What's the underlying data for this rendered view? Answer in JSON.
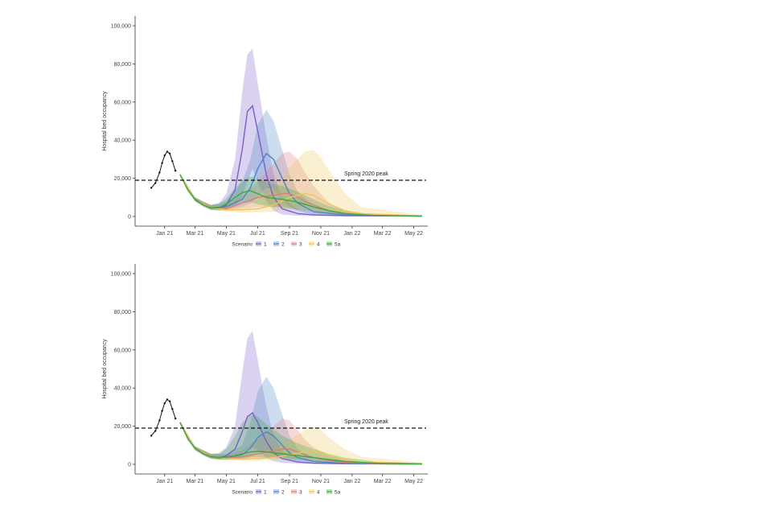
{
  "chart_data": [
    {
      "type": "area",
      "ylabel": "Hospital bed occupancy",
      "ylim": [
        0,
        100000
      ],
      "y_ticks": [
        "0",
        "20,000",
        "40,000",
        "60,000",
        "80,000",
        "100,000"
      ],
      "x_ticks": [
        "Jan 21",
        "Mar 21",
        "May 21",
        "Jul 21",
        "Sep 21",
        "Nov 21",
        "Jan 22",
        "Mar 22",
        "May 22"
      ],
      "reference_line": {
        "label": "Spring 2020 peak",
        "y": 19000
      },
      "legend": {
        "title": "Scenario",
        "placement": "bottom",
        "labels": [
          "1",
          "2",
          "3",
          "4",
          "5a"
        ]
      },
      "observed": {
        "x": [
          "2020-12-20",
          "2020-12-28",
          "2021-01-05",
          "2021-01-10",
          "2021-01-15",
          "2021-01-20",
          "2021-01-25",
          "2021-01-30",
          "2021-02-05"
        ],
        "y": [
          15000,
          17500,
          23000,
          28000,
          32000,
          34000,
          33000,
          29000,
          24000
        ]
      },
      "series": [
        {
          "color": "#7b5fc9",
          "x": [
            "2021-02-14",
            "2021-03-01",
            "2021-03-15",
            "2021-04-01",
            "2021-04-15",
            "2021-05-01",
            "2021-05-15",
            "2021-06-01",
            "2021-06-15",
            "2021-06-25",
            "2021-07-05",
            "2021-07-15",
            "2021-08-01",
            "2021-08-15",
            "2021-09-01",
            "2021-10-01",
            "2021-11-01",
            "2022-01-01",
            "2022-05-31"
          ],
          "y": [
            22000,
            15000,
            9000,
            6000,
            4500,
            4200,
            6000,
            14000,
            35000,
            55000,
            58000,
            45000,
            22000,
            10000,
            4000,
            1500,
            800,
            400,
            200
          ],
          "lo": [
            22000,
            14000,
            8000,
            5000,
            3500,
            3000,
            4000,
            6000,
            10000,
            18000,
            25000,
            18000,
            8000,
            3000,
            1000,
            400,
            200,
            100,
            50
          ],
          "hi": [
            22000,
            16000,
            10000,
            7500,
            6000,
            7000,
            12000,
            30000,
            65000,
            85000,
            88000,
            70000,
            42000,
            22000,
            10000,
            4000,
            2000,
            1000,
            500
          ]
        },
        {
          "color": "#4a86c8",
          "x": [
            "2021-02-14",
            "2021-03-15",
            "2021-04-15",
            "2021-05-15",
            "2021-06-15",
            "2021-07-01",
            "2021-07-15",
            "2021-08-01",
            "2021-08-15",
            "2021-09-01",
            "2021-09-15",
            "2021-10-01",
            "2021-11-01",
            "2022-01-01",
            "2022-05-31"
          ],
          "y": [
            22000,
            9000,
            4500,
            5000,
            9000,
            15000,
            25000,
            33000,
            30000,
            20000,
            12000,
            7000,
            2500,
            800,
            200
          ],
          "lo": [
            22000,
            8000,
            3500,
            3500,
            5000,
            7000,
            10000,
            15000,
            14000,
            9000,
            5000,
            3000,
            1000,
            300,
            50
          ],
          "hi": [
            22000,
            10000,
            6000,
            8000,
            18000,
            30000,
            48000,
            56000,
            50000,
            35000,
            22000,
            13000,
            5000,
            1500,
            500
          ]
        },
        {
          "color": "#e07b7b",
          "x": [
            "2021-02-14",
            "2021-03-15",
            "2021-04-15",
            "2021-05-15",
            "2021-06-15",
            "2021-07-15",
            "2021-08-15",
            "2021-09-01",
            "2021-09-15",
            "2021-10-01",
            "2021-10-15",
            "2021-11-01",
            "2021-12-01",
            "2022-01-01",
            "2022-03-01",
            "2022-05-31"
          ],
          "y": [
            22000,
            9000,
            4500,
            4000,
            7000,
            10000,
            11000,
            12000,
            12000,
            10000,
            8000,
            6000,
            3000,
            1500,
            500,
            200
          ],
          "lo": [
            22000,
            8000,
            3500,
            3000,
            4000,
            5000,
            5000,
            5500,
            5000,
            4000,
            3000,
            2000,
            1000,
            500,
            150,
            50
          ],
          "hi": [
            22000,
            10000,
            6000,
            6000,
            11000,
            18000,
            28000,
            33000,
            34000,
            30000,
            23000,
            16000,
            7000,
            3000,
            1000,
            400
          ]
        },
        {
          "color": "#f0c45a",
          "x": [
            "2021-02-14",
            "2021-03-15",
            "2021-04-15",
            "2021-05-15",
            "2021-06-15",
            "2021-07-15",
            "2021-08-15",
            "2021-09-15",
            "2021-10-15",
            "2021-11-01",
            "2021-11-15",
            "2021-12-01",
            "2022-01-01",
            "2022-02-01",
            "2022-05-31"
          ],
          "y": [
            22000,
            9000,
            4500,
            3500,
            3500,
            4000,
            6000,
            10000,
            12000,
            11000,
            9000,
            6500,
            3000,
            1500,
            300
          ],
          "lo": [
            22000,
            8000,
            3500,
            2500,
            2000,
            2000,
            2500,
            4000,
            5000,
            4500,
            3500,
            2500,
            1000,
            500,
            100
          ],
          "hi": [
            22000,
            10000,
            6000,
            5000,
            6000,
            9000,
            15000,
            26000,
            34000,
            35000,
            31000,
            24000,
            12000,
            5000,
            800
          ]
        },
        {
          "color": "#3aa83a",
          "x": [
            "2021-02-14",
            "2021-03-01",
            "2021-03-15",
            "2021-04-01",
            "2021-04-15",
            "2021-05-01",
            "2021-05-15",
            "2021-06-01",
            "2021-06-15",
            "2021-07-01",
            "2021-07-15",
            "2021-08-01",
            "2021-09-01",
            "2021-10-01",
            "2021-11-01",
            "2021-12-01",
            "2022-01-01",
            "2022-03-01",
            "2022-05-31"
          ],
          "y": [
            22000,
            14000,
            9000,
            6000,
            4500,
            4500,
            6500,
            10000,
            12500,
            13500,
            12000,
            10000,
            9000,
            7500,
            5000,
            3000,
            1500,
            500,
            200
          ],
          "lo": [
            22000,
            13000,
            8000,
            5000,
            3500,
            3500,
            4500,
            6000,
            7000,
            7500,
            6500,
            5500,
            4500,
            3500,
            2500,
            1500,
            700,
            200,
            50
          ],
          "hi": [
            22000,
            15000,
            10000,
            7500,
            6000,
            6500,
            9500,
            15000,
            19000,
            21000,
            20000,
            18000,
            16000,
            13000,
            9000,
            5500,
            3000,
            1000,
            400
          ]
        }
      ]
    },
    {
      "type": "area",
      "ylabel": "Hospital bed occupancy",
      "ylim": [
        0,
        100000
      ],
      "y_ticks": [
        "0",
        "20,000",
        "40,000",
        "60,000",
        "80,000",
        "100,000"
      ],
      "x_ticks": [
        "Jan 21",
        "Mar 21",
        "May 21",
        "Jul 21",
        "Sep 21",
        "Nov 21",
        "Jan 22",
        "Mar 22",
        "May 22"
      ],
      "reference_line": {
        "label": "Spring 2020 peak",
        "y": 19000
      },
      "legend": {
        "title": "Scenario",
        "placement": "bottom",
        "labels": [
          "1",
          "2",
          "3",
          "4",
          "5a"
        ]
      },
      "observed": {
        "x": [
          "2020-12-20",
          "2020-12-28",
          "2021-01-05",
          "2021-01-10",
          "2021-01-15",
          "2021-01-20",
          "2021-01-25",
          "2021-01-30",
          "2021-02-05"
        ],
        "y": [
          15000,
          17500,
          23000,
          28000,
          32000,
          34000,
          33000,
          29000,
          24000
        ]
      },
      "series": [
        {
          "color": "#7b5fc9",
          "x": [
            "2021-02-14",
            "2021-03-01",
            "2021-03-15",
            "2021-04-01",
            "2021-04-15",
            "2021-05-01",
            "2021-05-15",
            "2021-06-01",
            "2021-06-15",
            "2021-06-25",
            "2021-07-05",
            "2021-07-15",
            "2021-08-01",
            "2021-08-15",
            "2021-09-01",
            "2021-10-01",
            "2021-11-01",
            "2022-01-01",
            "2022-05-31"
          ],
          "y": [
            22000,
            14000,
            8500,
            5500,
            4000,
            3500,
            4500,
            8000,
            17000,
            25000,
            27000,
            22000,
            12000,
            6000,
            3000,
            1200,
            600,
            300,
            100
          ],
          "lo": [
            22000,
            13000,
            7500,
            4500,
            3000,
            2500,
            3000,
            4000,
            6000,
            8000,
            9000,
            7000,
            3500,
            1500,
            700,
            300,
            150,
            80,
            30
          ],
          "hi": [
            22000,
            15000,
            9500,
            7000,
            5500,
            6000,
            9000,
            20000,
            48000,
            66000,
            70000,
            55000,
            30000,
            15000,
            7000,
            3000,
            1500,
            700,
            300
          ]
        },
        {
          "color": "#4a86c8",
          "x": [
            "2021-02-14",
            "2021-03-15",
            "2021-04-15",
            "2021-05-15",
            "2021-06-15",
            "2021-07-01",
            "2021-07-15",
            "2021-08-01",
            "2021-08-15",
            "2021-09-01",
            "2021-09-15",
            "2021-10-01",
            "2021-11-01",
            "2022-01-01",
            "2022-05-31"
          ],
          "y": [
            22000,
            8500,
            4000,
            3500,
            5000,
            8500,
            14000,
            17000,
            15000,
            10000,
            6000,
            3500,
            1500,
            500,
            100
          ],
          "lo": [
            22000,
            7500,
            3000,
            2500,
            3000,
            4000,
            6000,
            7000,
            6000,
            4000,
            2500,
            1500,
            600,
            200,
            50
          ],
          "hi": [
            22000,
            9500,
            5500,
            5500,
            10000,
            22000,
            38000,
            46000,
            40000,
            26000,
            15000,
            8000,
            3000,
            1000,
            300
          ]
        },
        {
          "color": "#e07b7b",
          "x": [
            "2021-02-14",
            "2021-03-15",
            "2021-04-15",
            "2021-05-15",
            "2021-06-15",
            "2021-07-15",
            "2021-08-15",
            "2021-09-01",
            "2021-09-15",
            "2021-10-01",
            "2021-10-15",
            "2021-11-01",
            "2021-12-01",
            "2022-01-01",
            "2022-03-01",
            "2022-05-31"
          ],
          "y": [
            22000,
            8500,
            4000,
            3200,
            4000,
            5500,
            7000,
            8000,
            8000,
            6500,
            5000,
            3500,
            2000,
            1000,
            400,
            100
          ],
          "lo": [
            22000,
            7500,
            3000,
            2300,
            2500,
            3000,
            3500,
            4000,
            3800,
            3000,
            2300,
            1500,
            800,
            400,
            150,
            50
          ],
          "hi": [
            22000,
            9500,
            5500,
            4500,
            7500,
            13000,
            20000,
            24000,
            23000,
            18000,
            13000,
            9000,
            4500,
            2000,
            700,
            200
          ]
        },
        {
          "color": "#f0c45a",
          "x": [
            "2021-02-14",
            "2021-03-15",
            "2021-04-15",
            "2021-05-15",
            "2021-06-15",
            "2021-07-15",
            "2021-08-15",
            "2021-09-15",
            "2021-10-15",
            "2021-11-01",
            "2021-11-15",
            "2021-12-01",
            "2022-01-01",
            "2022-02-01",
            "2022-05-31"
          ],
          "y": [
            22000,
            8500,
            4000,
            3000,
            2800,
            3000,
            3500,
            5000,
            6500,
            7000,
            6000,
            4500,
            2500,
            1200,
            300
          ],
          "lo": [
            22000,
            7500,
            3000,
            2200,
            1800,
            1800,
            2000,
            2500,
            3000,
            3200,
            2800,
            2000,
            1100,
            500,
            100
          ],
          "hi": [
            22000,
            9500,
            5500,
            4500,
            4500,
            5500,
            8000,
            13000,
            18000,
            20000,
            18000,
            14000,
            8000,
            4000,
            1000
          ]
        },
        {
          "color": "#3aa83a",
          "x": [
            "2021-02-14",
            "2021-03-01",
            "2021-03-15",
            "2021-04-01",
            "2021-04-15",
            "2021-05-01",
            "2021-05-15",
            "2021-06-01",
            "2021-06-15",
            "2021-07-01",
            "2021-07-15",
            "2021-08-01",
            "2021-09-01",
            "2021-10-01",
            "2021-11-01",
            "2021-12-01",
            "2022-01-01",
            "2022-03-01",
            "2022-05-31"
          ],
          "y": [
            22000,
            13500,
            8500,
            5500,
            4000,
            3500,
            3800,
            4500,
            5500,
            6500,
            6800,
            6500,
            5500,
            4500,
            3500,
            2500,
            1500,
            600,
            200
          ],
          "lo": [
            22000,
            12500,
            7500,
            4500,
            3000,
            2500,
            2500,
            2800,
            3200,
            3600,
            3800,
            3600,
            3000,
            2400,
            1800,
            1200,
            700,
            250,
            80
          ],
          "hi": [
            22000,
            14500,
            9500,
            7000,
            5500,
            5500,
            8000,
            15000,
            22000,
            26000,
            25000,
            21000,
            15000,
            11000,
            8000,
            5500,
            3500,
            1500,
            500
          ]
        }
      ]
    }
  ]
}
